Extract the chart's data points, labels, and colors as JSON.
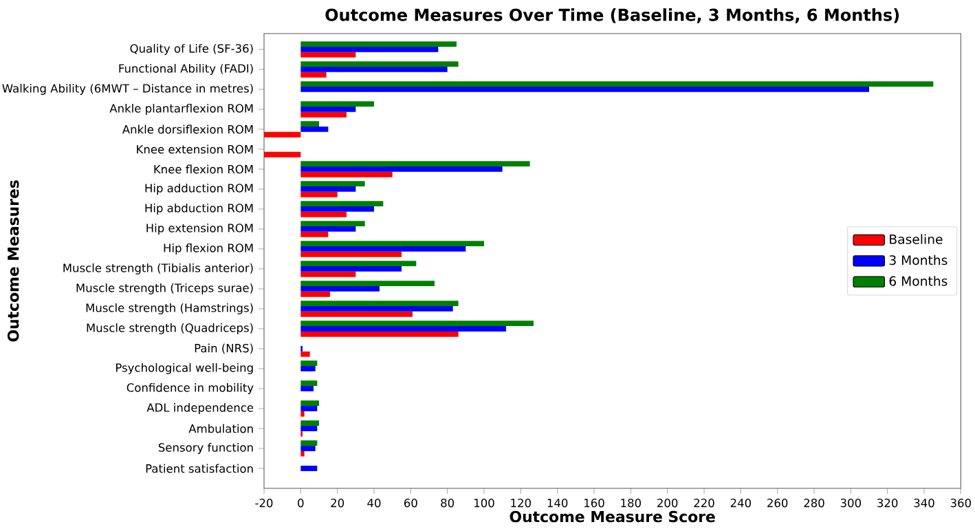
{
  "chart_data": {
    "type": "bar",
    "orientation": "horizontal",
    "title": "Outcome Measures Over Time (Baseline, 3 Months, 6 Months)",
    "xlabel": "Outcome Measure Score",
    "ylabel": "Outcome Measures",
    "categories": [
      "Quality of Life (SF-36)",
      "Functional Ability (FADI)",
      "Walking Ability (6MWT – Distance in metres)",
      "Ankle plantarflexion ROM",
      "Ankle dorsiflexion ROM",
      "Knee extension ROM",
      "Knee flexion ROM",
      "Hip adduction ROM",
      "Hip abduction ROM",
      "Hip extension ROM",
      "Hip flexion ROM",
      "Muscle strength (Tibialis anterior)",
      "Muscle strength (Triceps surae)",
      "Muscle strength (Hamstrings)",
      "Muscle strength (Quadriceps)",
      "Pain (NRS)",
      "Psychological well-being",
      "Confidence in mobility",
      "ADL independence",
      "Ambulation",
      "Sensory function",
      "Patient satisfaction"
    ],
    "series": [
      {
        "name": "Baseline",
        "color": "#ff0000",
        "values": [
          30,
          14,
          null,
          25,
          -20,
          -20,
          50,
          20,
          25,
          15,
          55,
          30,
          16,
          61,
          86,
          5,
          null,
          null,
          2,
          1,
          2,
          null
        ]
      },
      {
        "name": "3 Months",
        "color": "#0000ff",
        "values": [
          75,
          80,
          310,
          30,
          15,
          null,
          110,
          30,
          40,
          30,
          90,
          55,
          43,
          83,
          112,
          1,
          8,
          7,
          9,
          9,
          8,
          9
        ]
      },
      {
        "name": "6 Months",
        "color": "#008000",
        "values": [
          85,
          86,
          345,
          40,
          10,
          null,
          125,
          35,
          45,
          35,
          100,
          63,
          73,
          86,
          127,
          null,
          9,
          9,
          10,
          10,
          9,
          null
        ]
      }
    ],
    "xlim": [
      -20,
      360
    ],
    "xticks": [
      -20,
      0,
      20,
      40,
      60,
      80,
      100,
      120,
      140,
      160,
      180,
      200,
      220,
      240,
      260,
      280,
      300,
      320,
      340,
      360
    ],
    "grid": false,
    "legend": "right"
  }
}
